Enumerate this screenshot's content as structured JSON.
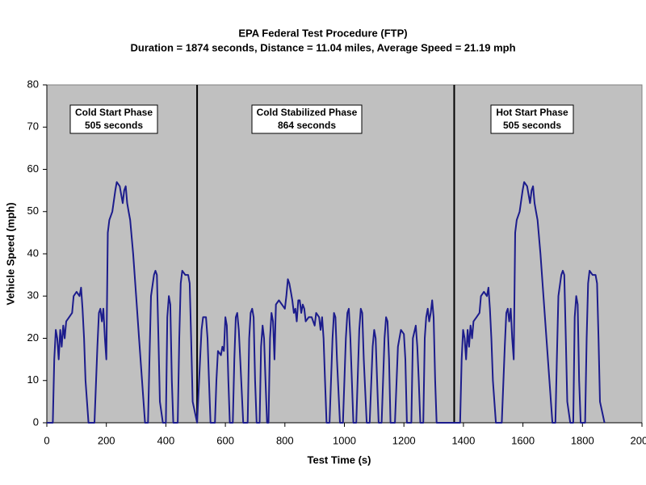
{
  "chart_data": {
    "type": "line",
    "title": "EPA Federal Test Procedure (FTP)",
    "subtitle": "Duration = 1874 seconds, Distance = 11.04 miles, Average Speed = 21.19 mph",
    "x_label": "Test Time (s)",
    "y_label": "Vehicle Speed (mph)",
    "xlim": [
      0,
      2000
    ],
    "ylim": [
      0,
      80
    ],
    "xticks": [
      0,
      200,
      400,
      600,
      800,
      1000,
      1200,
      1400,
      1600,
      1800,
      2000
    ],
    "yticks": [
      0,
      10,
      20,
      30,
      40,
      50,
      60,
      70,
      80
    ],
    "grid": false,
    "background": "#c0c0c0",
    "phase_boundaries": [
      505,
      1369
    ],
    "annotations": [
      {
        "lines": [
          "Cold Start Phase",
          "505 seconds"
        ]
      },
      {
        "lines": [
          "Cold Stabilized Phase",
          "864 seconds"
        ]
      },
      {
        "lines": [
          "Hot Start Phase",
          "505 seconds"
        ]
      }
    ],
    "series": [
      {
        "color": "#1c1c8c",
        "x": [
          0,
          20,
          25,
          30,
          35,
          40,
          45,
          50,
          55,
          60,
          65,
          75,
          85,
          90,
          100,
          110,
          115,
          120,
          125,
          130,
          140,
          160,
          170,
          175,
          180,
          185,
          190,
          195,
          200,
          205,
          210,
          220,
          230,
          235,
          245,
          250,
          255,
          260,
          265,
          270,
          275,
          280,
          290,
          300,
          310,
          320,
          330,
          340,
          345,
          350,
          360,
          365,
          370,
          375,
          380,
          390,
          400,
          405,
          410,
          415,
          420,
          425,
          440,
          445,
          450,
          455,
          465,
          475,
          480,
          485,
          490,
          505,
          515,
          520,
          525,
          535,
          540,
          545,
          550,
          565,
          570,
          575,
          585,
          590,
          595,
          600,
          605,
          610,
          615,
          625,
          630,
          635,
          640,
          645,
          650,
          660,
          675,
          680,
          685,
          690,
          695,
          700,
          705,
          715,
          720,
          725,
          730,
          735,
          740,
          745,
          750,
          755,
          760,
          765,
          770,
          780,
          790,
          800,
          805,
          810,
          815,
          820,
          825,
          830,
          835,
          840,
          845,
          850,
          855,
          860,
          865,
          870,
          880,
          890,
          900,
          905,
          915,
          920,
          925,
          930,
          935,
          940,
          950,
          960,
          965,
          970,
          975,
          985,
          995,
          1005,
          1010,
          1015,
          1020,
          1030,
          1040,
          1050,
          1055,
          1060,
          1065,
          1075,
          1085,
          1095,
          1100,
          1105,
          1110,
          1115,
          1125,
          1135,
          1140,
          1145,
          1150,
          1155,
          1170,
          1180,
          1190,
          1200,
          1205,
          1210,
          1225,
          1230,
          1240,
          1245,
          1250,
          1255,
          1265,
          1270,
          1275,
          1280,
          1285,
          1290,
          1295,
          1300,
          1305,
          1310,
          1369,
          1389,
          1394,
          1399,
          1404,
          1409,
          1414,
          1419,
          1424,
          1429,
          1434,
          1444,
          1454,
          1459,
          1469,
          1479,
          1484,
          1489,
          1494,
          1499,
          1509,
          1529,
          1539,
          1544,
          1549,
          1554,
          1559,
          1564,
          1569,
          1574,
          1579,
          1589,
          1599,
          1604,
          1614,
          1619,
          1624,
          1629,
          1634,
          1639,
          1644,
          1649,
          1659,
          1669,
          1679,
          1689,
          1699,
          1709,
          1714,
          1719,
          1729,
          1734,
          1739,
          1744,
          1749,
          1759,
          1769,
          1774,
          1779,
          1784,
          1789,
          1794,
          1809,
          1814,
          1819,
          1824,
          1834,
          1844,
          1849,
          1854,
          1859,
          1874
        ],
        "values": [
          0,
          0,
          15,
          22,
          20,
          15,
          22,
          18,
          23,
          20,
          24,
          25,
          26,
          30,
          31,
          30,
          32,
          27,
          20,
          10,
          0,
          0,
          18,
          26,
          27,
          24,
          27,
          20,
          15,
          45,
          48,
          50,
          55,
          57,
          56,
          54,
          52,
          55,
          56,
          52,
          50,
          48,
          40,
          30,
          20,
          10,
          0,
          0,
          15,
          30,
          35,
          36,
          35,
          20,
          5,
          0,
          0,
          25,
          30,
          28,
          10,
          0,
          0,
          20,
          33,
          36,
          35,
          35,
          33,
          20,
          5,
          0,
          15,
          22,
          25,
          25,
          20,
          10,
          0,
          0,
          10,
          17,
          16,
          18,
          17,
          25,
          23,
          10,
          0,
          0,
          15,
          25,
          26,
          22,
          15,
          0,
          0,
          20,
          26,
          27,
          25,
          10,
          0,
          0,
          18,
          23,
          20,
          10,
          0,
          0,
          20,
          26,
          24,
          15,
          28,
          29,
          28,
          27,
          30,
          34,
          33,
          31,
          29,
          26,
          27,
          24,
          29,
          29,
          26,
          28,
          27,
          24,
          25,
          25,
          23,
          26,
          25,
          22,
          25,
          20,
          10,
          0,
          0,
          20,
          26,
          25,
          15,
          0,
          0,
          20,
          26,
          27,
          20,
          0,
          0,
          22,
          27,
          26,
          15,
          0,
          0,
          18,
          22,
          20,
          10,
          0,
          0,
          20,
          25,
          24,
          15,
          0,
          0,
          18,
          22,
          21,
          15,
          0,
          0,
          20,
          23,
          18,
          10,
          0,
          0,
          20,
          25,
          27,
          24,
          26,
          29,
          25,
          10,
          0,
          0,
          0,
          15,
          22,
          20,
          15,
          22,
          18,
          23,
          20,
          24,
          25,
          26,
          30,
          31,
          30,
          32,
          27,
          20,
          10,
          0,
          0,
          18,
          26,
          27,
          24,
          27,
          20,
          15,
          45,
          48,
          50,
          55,
          57,
          56,
          54,
          52,
          55,
          56,
          52,
          50,
          48,
          40,
          30,
          20,
          10,
          0,
          0,
          15,
          30,
          35,
          36,
          35,
          20,
          5,
          0,
          0,
          25,
          30,
          28,
          10,
          0,
          0,
          20,
          33,
          36,
          35,
          35,
          33,
          20,
          5,
          0
        ]
      }
    ]
  }
}
